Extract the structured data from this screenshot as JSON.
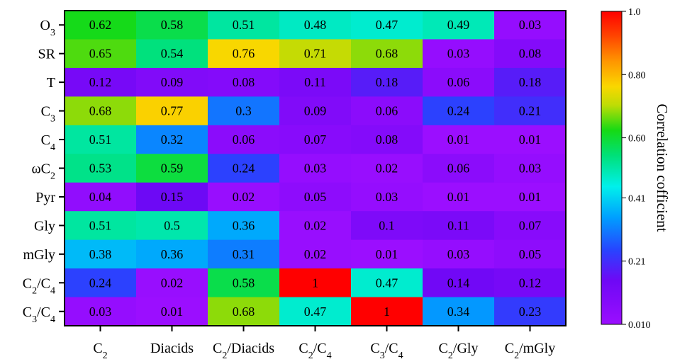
{
  "chart_data": {
    "type": "heatmap",
    "rows": [
      {
        "main": "O",
        "sub": "3",
        "tail": ""
      },
      {
        "main": "SR",
        "sub": "",
        "tail": ""
      },
      {
        "main": "T",
        "sub": "",
        "tail": ""
      },
      {
        "main": "C",
        "sub": "3",
        "tail": ""
      },
      {
        "main": "C",
        "sub": "4",
        "tail": ""
      },
      {
        "main": "ωC",
        "sub": "2",
        "tail": ""
      },
      {
        "main": "Pyr",
        "sub": "",
        "tail": ""
      },
      {
        "main": "Gly",
        "sub": "",
        "tail": ""
      },
      {
        "main": "mGly",
        "sub": "",
        "tail": ""
      },
      {
        "main": "C",
        "sub": "2",
        "tail": "/C",
        "sub2": "4"
      },
      {
        "main": "C",
        "sub": "3",
        "tail": "/C",
        "sub2": "4"
      }
    ],
    "columns": [
      {
        "main": "C",
        "sub": "2",
        "tail": ""
      },
      {
        "main": "Diacids",
        "sub": "",
        "tail": ""
      },
      {
        "main": "C",
        "sub": "2",
        "tail": "/Diacids"
      },
      {
        "main": "C",
        "sub": "2",
        "tail": "/C",
        "sub2": "4"
      },
      {
        "main": "C",
        "sub": "3",
        "tail": "/C",
        "sub2": "4"
      },
      {
        "main": "C",
        "sub": "2",
        "tail": "/Gly"
      },
      {
        "main": "C",
        "sub": "2",
        "tail": "/mGly"
      }
    ],
    "values": [
      [
        "0.62",
        "0.58",
        "0.51",
        "0.48",
        "0.47",
        "0.49",
        "0.03"
      ],
      [
        "0.65",
        "0.54",
        "0.76",
        "0.71",
        "0.68",
        "0.03",
        "0.08"
      ],
      [
        "0.12",
        "0.09",
        "0.08",
        "0.11",
        "0.18",
        "0.06",
        "0.18"
      ],
      [
        "0.68",
        "0.77",
        "0.3",
        "0.09",
        "0.06",
        "0.24",
        "0.21"
      ],
      [
        "0.51",
        "0.32",
        "0.06",
        "0.07",
        "0.08",
        "0.01",
        "0.01"
      ],
      [
        "0.53",
        "0.59",
        "0.24",
        "0.03",
        "0.02",
        "0.06",
        "0.03"
      ],
      [
        "0.04",
        "0.15",
        "0.02",
        "0.05",
        "0.03",
        "0.01",
        "0.01"
      ],
      [
        "0.51",
        "0.5",
        "0.36",
        "0.02",
        "0.1",
        "0.11",
        "0.07"
      ],
      [
        "0.38",
        "0.36",
        "0.31",
        "0.02",
        "0.01",
        "0.03",
        "0.05"
      ],
      [
        "0.24",
        "0.02",
        "0.58",
        "1",
        "0.47",
        "0.14",
        "0.12"
      ],
      [
        "0.03",
        "0.01",
        "0.68",
        "0.47",
        "1",
        "0.34",
        "0.23"
      ]
    ],
    "colorbar": {
      "title": "Correlation cofficient",
      "ticks": [
        "1.0",
        "0.80",
        "0.60",
        "0.41",
        "0.21",
        "0.010"
      ],
      "min": 0.01,
      "max": 1.0,
      "colormap": "rainbow (purple → blue → cyan → green → yellow → orange → red)"
    },
    "legend_position": "right",
    "grid": false
  }
}
